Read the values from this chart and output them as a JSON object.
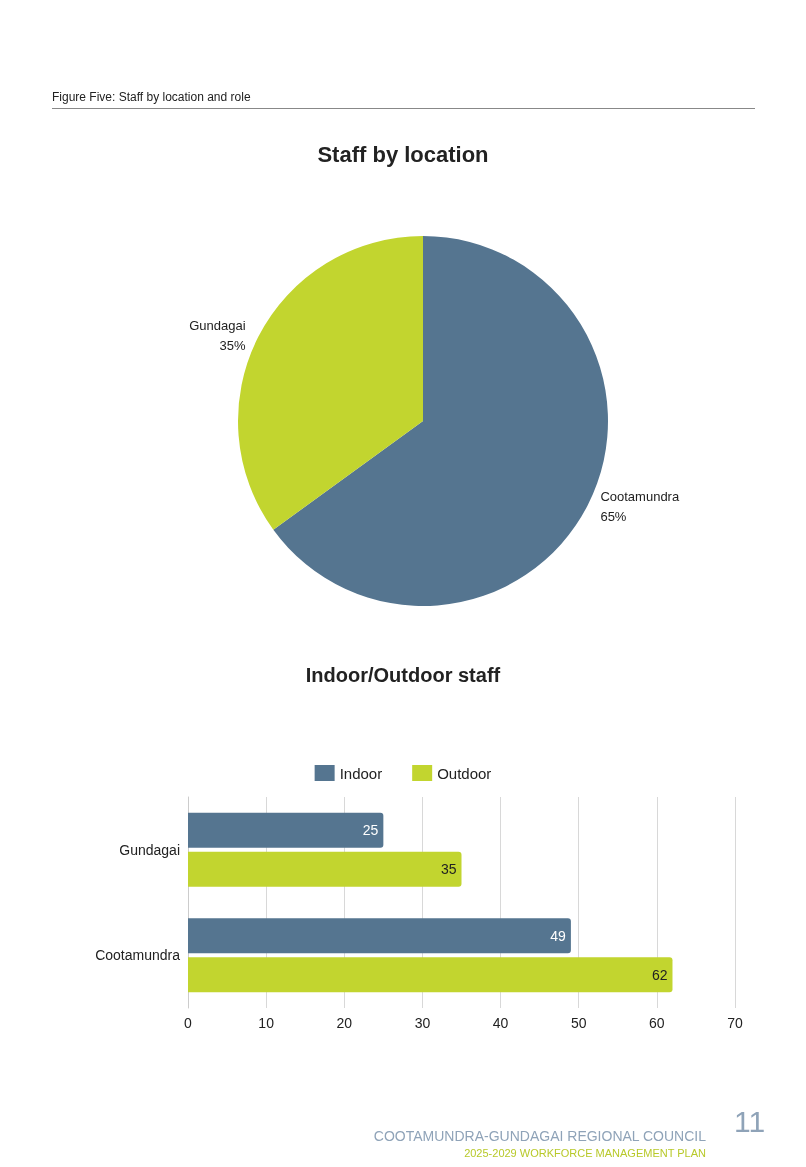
{
  "chart_data": [
    {
      "type": "pie",
      "title": "Staff by location",
      "annotations": [
        "Figure Five: Staff by location and role"
      ],
      "categories": [
        "Cootamundra",
        "Gundagai"
      ],
      "values": [
        65,
        35
      ],
      "value_labels": [
        "65%",
        "35%"
      ],
      "colors": [
        "#557590",
        "#c2d52f"
      ],
      "legend": false
    },
    {
      "type": "bar",
      "orientation": "horizontal",
      "title": "Indoor/Outdoor staff",
      "categories": [
        "Gundagai",
        "Cootamundra"
      ],
      "series": [
        {
          "name": "Indoor",
          "color": "#557590",
          "values": [
            25,
            49
          ]
        },
        {
          "name": "Outdoor",
          "color": "#c2d52f",
          "values": [
            35,
            62
          ]
        }
      ],
      "xlim": [
        0,
        70
      ],
      "xticks": [
        0,
        10,
        20,
        30,
        40,
        50,
        60,
        70
      ],
      "grid": "x",
      "legend": "top",
      "data_labels": true,
      "annotations": [
        "COOTAMUNDRA-GUNDAGAI REGIONAL COUNCIL",
        "2025-2029 WORKFORCE MANAGEMENT PLAN",
        "11"
      ]
    }
  ]
}
